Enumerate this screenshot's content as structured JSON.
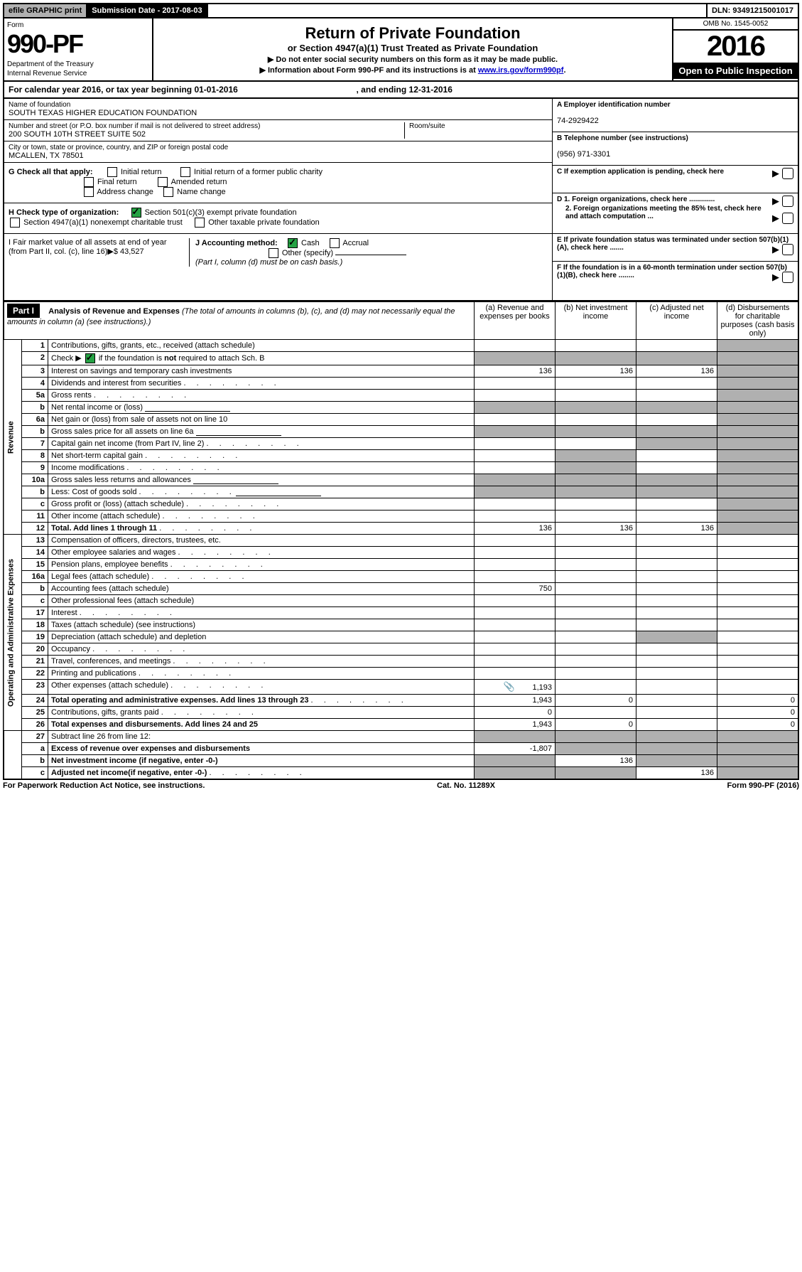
{
  "top": {
    "efile": "efile GRAPHIC print",
    "submission": "Submission Date - 2017-08-03",
    "dln": "DLN: 93491215001017"
  },
  "header": {
    "form_word": "Form",
    "form_no": "990-PF",
    "dept1": "Department of the Treasury",
    "dept2": "Internal Revenue Service",
    "title": "Return of Private Foundation",
    "sub1": "or Section 4947(a)(1) Trust Treated as Private Foundation",
    "sub2": "▶ Do not enter social security numbers on this form as it may be made public.",
    "sub3_a": "▶ Information about Form 990-PF and its instructions is at ",
    "sub3_link": "www.irs.gov/form990pf",
    "sub3_b": ".",
    "omb": "OMB No. 1545-0052",
    "year": "2016",
    "open": "Open to Public Inspection"
  },
  "cal": {
    "text_a": "For calendar year 2016, or tax year beginning 01-01-2016",
    "text_b": ", and ending 12-31-2016"
  },
  "info": {
    "name_label": "Name of foundation",
    "name": "SOUTH TEXAS HIGHER EDUCATION FOUNDATION",
    "addr_label": "Number and street (or P.O. box number if mail is not delivered to street address)",
    "addr": "200 SOUTH 10TH STREET SUITE 502",
    "room_label": "Room/suite",
    "city_label": "City or town, state or province, country, and ZIP or foreign postal code",
    "city": "MCALLEN, TX  78501",
    "a_label": "A Employer identification number",
    "a_val": "74-2929422",
    "b_label": "B Telephone number (see instructions)",
    "b_val": "(956) 971-3301",
    "c_label": "C If exemption application is pending, check here",
    "g_label": "G Check all that apply:",
    "g_initial": "Initial return",
    "g_final": "Final return",
    "g_addr": "Address change",
    "g_initial_former": "Initial return of a former public charity",
    "g_amended": "Amended return",
    "g_name": "Name change",
    "d1": "D 1. Foreign organizations, check here .............",
    "d2": "2. Foreign organizations meeting the 85% test, check here and attach computation ...",
    "h_label": "H Check type of organization:",
    "h_501": "Section 501(c)(3) exempt private foundation",
    "h_4947": "Section 4947(a)(1) nonexempt charitable trust",
    "h_other_tax": "Other taxable private foundation",
    "e_label": "E If private foundation status was terminated under section 507(b)(1)(A), check here .......",
    "i_label": "I Fair market value of all assets at end of year (from Part II, col. (c), line 16)▶$  43,527",
    "j_label": "J Accounting method:",
    "j_cash": "Cash",
    "j_accrual": "Accrual",
    "j_other": "Other (specify)",
    "j_note": "(Part I, column (d) must be on cash basis.)",
    "f_label": "F  If the foundation is in a 60-month termination under section 507(b)(1)(B), check here ........"
  },
  "part1": {
    "label": "Part I",
    "title": "Analysis of Revenue and Expenses",
    "title_sub": " (The total of amounts in columns (b), (c), and (d) may not necessarily equal the amounts in column (a) (see instructions).)",
    "col_a": "(a)    Revenue and expenses per books",
    "col_b": "(b)   Net investment income",
    "col_c": "(c)   Adjusted net income",
    "col_d": "(d)   Disbursements for charitable purposes (cash basis only)",
    "revenue_label": "Revenue",
    "expenses_label": "Operating and Administrative Expenses",
    "rows": {
      "1": {
        "n": "1",
        "d": "Contributions, gifts, grants, etc., received (attach schedule)"
      },
      "2": {
        "n": "2",
        "d": "Check ▶  ☑  if the foundation is not required to attach Sch. B"
      },
      "3": {
        "n": "3",
        "d": "Interest on savings and temporary cash investments",
        "a": "136",
        "b": "136",
        "c": "136"
      },
      "4": {
        "n": "4",
        "d": "Dividends and interest from securities"
      },
      "5a": {
        "n": "5a",
        "d": "Gross rents"
      },
      "5b": {
        "n": "b",
        "d": "Net rental income or (loss)"
      },
      "6a": {
        "n": "6a",
        "d": "Net gain or (loss) from sale of assets not on line 10"
      },
      "6b": {
        "n": "b",
        "d": "Gross sales price for all assets on line 6a"
      },
      "7": {
        "n": "7",
        "d": "Capital gain net income (from Part IV, line 2)"
      },
      "8": {
        "n": "8",
        "d": "Net short-term capital gain"
      },
      "9": {
        "n": "9",
        "d": "Income modifications"
      },
      "10a": {
        "n": "10a",
        "d": "Gross sales less returns and allowances"
      },
      "10b": {
        "n": "b",
        "d": "Less: Cost of goods sold"
      },
      "10c": {
        "n": "c",
        "d": "Gross profit or (loss) (attach schedule)"
      },
      "11": {
        "n": "11",
        "d": "Other income (attach schedule)"
      },
      "12": {
        "n": "12",
        "d": "Total. Add lines 1 through 11",
        "a": "136",
        "b": "136",
        "c": "136"
      },
      "13": {
        "n": "13",
        "d": "Compensation of officers, directors, trustees, etc."
      },
      "14": {
        "n": "14",
        "d": "Other employee salaries and wages"
      },
      "15": {
        "n": "15",
        "d": "Pension plans, employee benefits"
      },
      "16a": {
        "n": "16a",
        "d": "Legal fees (attach schedule)"
      },
      "16b": {
        "n": "b",
        "d": "Accounting fees (attach schedule)",
        "a": "750"
      },
      "16c": {
        "n": "c",
        "d": "Other professional fees (attach schedule)"
      },
      "17": {
        "n": "17",
        "d": "Interest"
      },
      "18": {
        "n": "18",
        "d": "Taxes (attach schedule) (see instructions)"
      },
      "19": {
        "n": "19",
        "d": "Depreciation (attach schedule) and depletion"
      },
      "20": {
        "n": "20",
        "d": "Occupancy"
      },
      "21": {
        "n": "21",
        "d": "Travel, conferences, and meetings"
      },
      "22": {
        "n": "22",
        "d": "Printing and publications"
      },
      "23": {
        "n": "23",
        "d": "Other expenses (attach schedule)",
        "a": "1,193",
        "icon": "📎"
      },
      "24": {
        "n": "24",
        "d": "Total operating and administrative expenses. Add lines 13 through 23",
        "a": "1,943",
        "b": "0",
        "dd": "0"
      },
      "25": {
        "n": "25",
        "d": "Contributions, gifts, grants paid",
        "a": "0",
        "dd": "0"
      },
      "26": {
        "n": "26",
        "d": "Total expenses and disbursements. Add lines 24 and 25",
        "a": "1,943",
        "b": "0",
        "dd": "0"
      },
      "27": {
        "n": "27",
        "d": "Subtract line 26 from line 12:"
      },
      "27a": {
        "n": "a",
        "d": "Excess of revenue over expenses and disbursements",
        "a": "-1,807"
      },
      "27b": {
        "n": "b",
        "d": "Net investment income (if negative, enter -0-)",
        "b": "136"
      },
      "27c": {
        "n": "c",
        "d": "Adjusted net income(if negative, enter -0-)",
        "c": "136"
      }
    }
  },
  "footer": {
    "left": "For Paperwork Reduction Act Notice, see instructions.",
    "mid": "Cat. No. 11289X",
    "right": "Form 990-PF (2016)"
  }
}
